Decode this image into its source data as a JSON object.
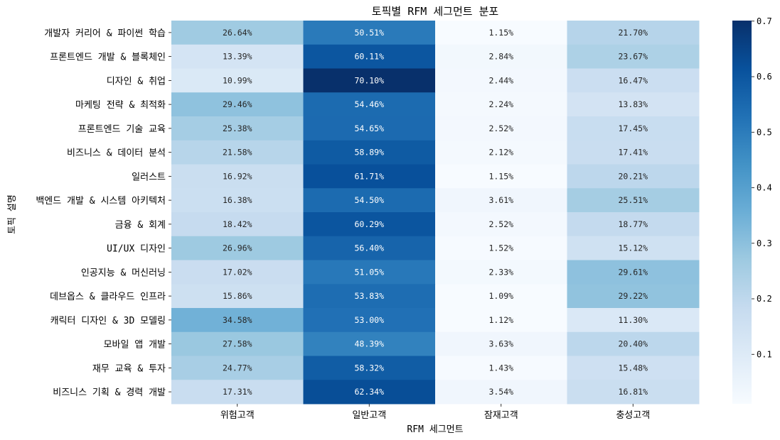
{
  "chart_data": {
    "type": "heatmap",
    "title": "토픽별 RFM 세그먼트 분포",
    "xlabel": "RFM 세그먼트",
    "ylabel": "토픽 설명",
    "columns": [
      "위험고객",
      "일반고객",
      "잠재고객",
      "충성고객"
    ],
    "rows": [
      "개발자 커리어 & 파이썬 학습",
      "프론트엔드 개발 & 블록체인",
      "디자인 & 취업",
      "마케팅 전략 & 최적화",
      "프론트엔드 기술 교육",
      "비즈니스 & 데이터 분석",
      "일러스트",
      "백엔드 개발 & 시스템 아키텍처",
      "금융 & 회계",
      "UI/UX 디자인",
      "인공지능 & 머신러닝",
      "데브옵스 & 클라우드 인프라",
      "캐릭터 디자인 & 3D 모델링",
      "모바일 앱 개발",
      "재무 교육 & 투자",
      "비즈니스 기획 & 경력 개발"
    ],
    "values": [
      [
        0.2664,
        0.5051,
        0.0115,
        0.217
      ],
      [
        0.1339,
        0.6011,
        0.0284,
        0.2367
      ],
      [
        0.1099,
        0.701,
        0.0244,
        0.1647
      ],
      [
        0.2946,
        0.5446,
        0.0224,
        0.1383
      ],
      [
        0.2538,
        0.5465,
        0.0252,
        0.1745
      ],
      [
        0.2158,
        0.5889,
        0.0212,
        0.1741
      ],
      [
        0.1692,
        0.6171,
        0.0115,
        0.2021
      ],
      [
        0.1638,
        0.545,
        0.0361,
        0.2551
      ],
      [
        0.1842,
        0.6029,
        0.0252,
        0.1877
      ],
      [
        0.2696,
        0.564,
        0.0152,
        0.1512
      ],
      [
        0.1702,
        0.5105,
        0.0233,
        0.2961
      ],
      [
        0.1586,
        0.5383,
        0.0109,
        0.2922
      ],
      [
        0.3458,
        0.53,
        0.0112,
        0.113
      ],
      [
        0.2758,
        0.4839,
        0.0363,
        0.204
      ],
      [
        0.2477,
        0.5832,
        0.0143,
        0.1548
      ],
      [
        0.1731,
        0.6234,
        0.0354,
        0.1681
      ]
    ],
    "labels": [
      [
        "26.64%",
        "50.51%",
        "1.15%",
        "21.70%"
      ],
      [
        "13.39%",
        "60.11%",
        "2.84%",
        "23.67%"
      ],
      [
        "10.99%",
        "70.10%",
        "2.44%",
        "16.47%"
      ],
      [
        "29.46%",
        "54.46%",
        "2.24%",
        "13.83%"
      ],
      [
        "25.38%",
        "54.65%",
        "2.52%",
        "17.45%"
      ],
      [
        "21.58%",
        "58.89%",
        "2.12%",
        "17.41%"
      ],
      [
        "16.92%",
        "61.71%",
        "1.15%",
        "20.21%"
      ],
      [
        "16.38%",
        "54.50%",
        "3.61%",
        "25.51%"
      ],
      [
        "18.42%",
        "60.29%",
        "2.52%",
        "18.77%"
      ],
      [
        "26.96%",
        "56.40%",
        "1.52%",
        "15.12%"
      ],
      [
        "17.02%",
        "51.05%",
        "2.33%",
        "29.61%"
      ],
      [
        "15.86%",
        "53.83%",
        "1.09%",
        "29.22%"
      ],
      [
        "34.58%",
        "53.00%",
        "1.12%",
        "11.30%"
      ],
      [
        "27.58%",
        "48.39%",
        "3.63%",
        "20.40%"
      ],
      [
        "24.77%",
        "58.32%",
        "1.43%",
        "15.48%"
      ],
      [
        "17.31%",
        "62.34%",
        "3.54%",
        "16.81%"
      ]
    ],
    "colorbar": {
      "min": 0.0109,
      "max": 0.701,
      "ticks": [
        0.1,
        0.2,
        0.3,
        0.4,
        0.5,
        0.6,
        0.7
      ],
      "tick_labels": [
        "0.1",
        "0.2",
        "0.3",
        "0.4",
        "0.5",
        "0.6",
        "0.7"
      ],
      "colormap": "Blues"
    },
    "grid": false
  }
}
